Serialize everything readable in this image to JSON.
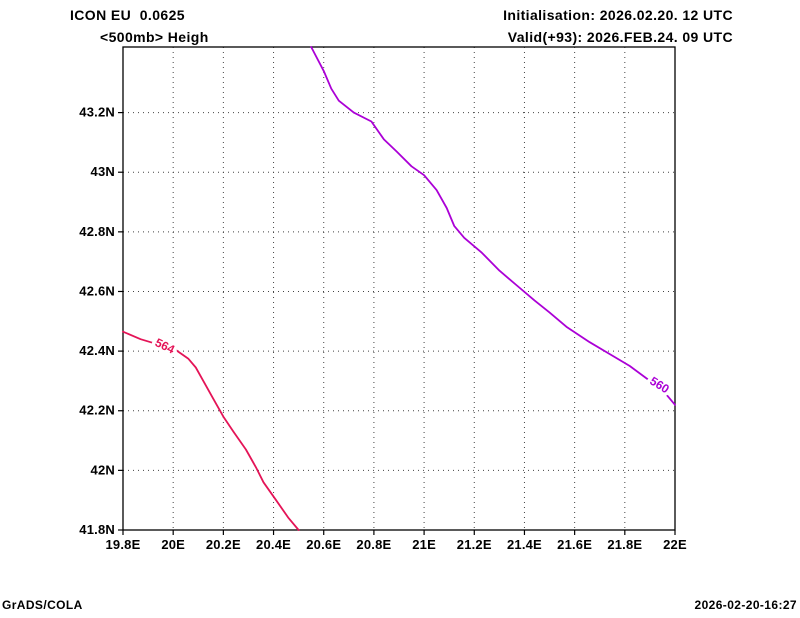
{
  "header": {
    "model_line": "ICON EU  0.0625",
    "field_line": "<500mb> Heigh",
    "init_line": "Initialisation: 2026.02.20. 12 UTC",
    "valid_line": "Valid(+93): 2026.FEB.24. 09 UTC"
  },
  "footer": {
    "left": "GrADS/COLA",
    "right": "2026-02-20-16:27"
  },
  "chart_data": {
    "type": "line",
    "title": "<500mb> Heigh",
    "xlabel": "",
    "ylabel": "",
    "xlim": [
      19.8,
      22.0
    ],
    "ylim": [
      41.8,
      43.42
    ],
    "grid": "dotted",
    "legend": "none",
    "x_ticks": [
      19.8,
      20.0,
      20.2,
      20.4,
      20.6,
      20.8,
      21.0,
      21.2,
      21.4,
      21.6,
      21.8,
      22.0
    ],
    "x_tick_labels": [
      "19.8E",
      "20E",
      "20.2E",
      "20.4E",
      "20.6E",
      "20.8E",
      "21E",
      "21.2E",
      "21.4E",
      "21.6E",
      "21.8E",
      "22E"
    ],
    "y_ticks": [
      41.8,
      42.0,
      42.2,
      42.4,
      42.6,
      42.8,
      43.0,
      43.2
    ],
    "y_tick_labels": [
      "41.8N",
      "42N",
      "42.2N",
      "42.4N",
      "42.6N",
      "42.8N",
      "43N",
      "43.2N"
    ],
    "series": [
      {
        "name": "560",
        "color": "#ab00d6",
        "label": {
          "x": 21.93,
          "y": 42.275,
          "angle": 32
        },
        "points": [
          [
            20.55,
            43.42
          ],
          [
            20.6,
            43.34
          ],
          [
            20.63,
            43.28
          ],
          [
            20.66,
            43.24
          ],
          [
            20.72,
            43.2
          ],
          [
            20.79,
            43.17
          ],
          [
            20.84,
            43.11
          ],
          [
            20.89,
            43.07
          ],
          [
            20.95,
            43.02
          ],
          [
            21.0,
            42.99
          ],
          [
            21.05,
            42.94
          ],
          [
            21.09,
            42.88
          ],
          [
            21.12,
            42.82
          ],
          [
            21.16,
            42.78
          ],
          [
            21.23,
            42.73
          ],
          [
            21.3,
            42.67
          ],
          [
            21.37,
            42.62
          ],
          [
            21.44,
            42.57
          ],
          [
            21.5,
            42.53
          ],
          [
            21.57,
            42.48
          ],
          [
            21.66,
            42.43
          ],
          [
            21.74,
            42.39
          ],
          [
            21.82,
            42.35
          ],
          [
            21.9,
            42.3
          ],
          [
            21.96,
            42.26
          ],
          [
            22.0,
            42.22
          ]
        ]
      },
      {
        "name": "564",
        "color": "#e41457",
        "label": {
          "x": 19.96,
          "y": 42.405,
          "angle": 26
        },
        "points": [
          [
            19.8,
            42.465
          ],
          [
            19.87,
            42.44
          ],
          [
            19.93,
            42.425
          ],
          [
            20.0,
            42.41
          ],
          [
            20.06,
            42.375
          ],
          [
            20.09,
            42.345
          ],
          [
            20.12,
            42.3
          ],
          [
            20.16,
            42.24
          ],
          [
            20.2,
            42.18
          ],
          [
            20.24,
            42.13
          ],
          [
            20.29,
            42.07
          ],
          [
            20.33,
            42.01
          ],
          [
            20.36,
            41.96
          ],
          [
            20.41,
            41.9
          ],
          [
            20.46,
            41.84
          ],
          [
            20.5,
            41.8
          ]
        ]
      }
    ]
  }
}
